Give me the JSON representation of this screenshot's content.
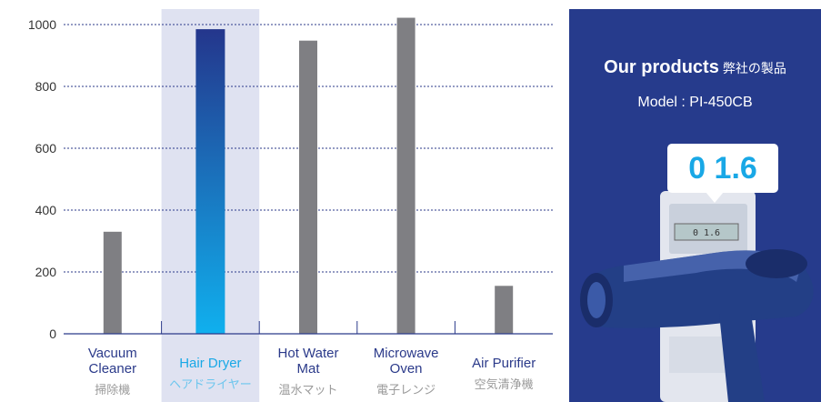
{
  "chart_data": {
    "type": "bar",
    "categories": [
      "Vacuum Cleaner",
      "Hair Dryer",
      "Hot Water Mat",
      "Microwave Oven",
      "Air Purifier"
    ],
    "category_labels": [
      {
        "en": "Vacuum Cleaner",
        "en_lines": [
          "Vacuum",
          "Cleaner"
        ],
        "jp": "掃除機"
      },
      {
        "en": "Hair Dryer",
        "en_lines": [
          "Hair Dryer"
        ],
        "jp": "ヘアドライヤー"
      },
      {
        "en": "Hot Water Mat",
        "en_lines": [
          "Hot Water",
          "Mat"
        ],
        "jp": "温水マット"
      },
      {
        "en": "Microwave Oven",
        "en_lines": [
          "Microwave",
          "Oven"
        ],
        "jp": "電子レンジ"
      },
      {
        "en": "Air Purifier",
        "en_lines": [
          "Air Purifier"
        ],
        "jp": "空気清浄機"
      }
    ],
    "values": [
      330,
      985,
      948,
      1022,
      155
    ],
    "highlight_index": 1,
    "yticks": [
      0,
      200,
      400,
      600,
      800,
      1000
    ],
    "ylim": [
      0,
      1030
    ],
    "grid": true,
    "colors": {
      "bar": "#7f7f83",
      "highlight_top": "#24368c",
      "highlight_bottom": "#10b0ee",
      "highlight_band": "#dfe2f1",
      "grid": "#2b3a8a",
      "axis": "#2b3a8a"
    }
  },
  "panel": {
    "title_bold": "Our products",
    "title_jp": "弊社の製品",
    "model": "Model : PI-450CB",
    "reading": "0 1.6",
    "lcd_reading": "0 1.6",
    "background": "#263b8c"
  }
}
